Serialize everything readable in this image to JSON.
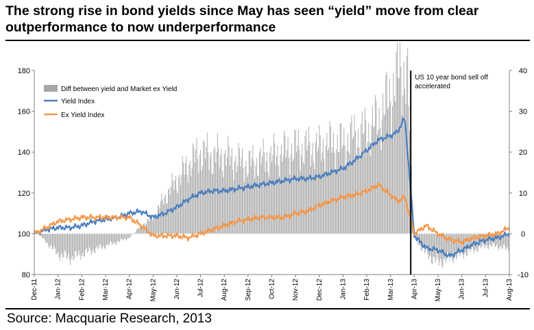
{
  "header": {
    "title": "The strong rise in bond yields since May has seen “yield” move from clear outperformance to now underperformance"
  },
  "footer": {
    "source": "Source: Macquarie Research, 2013"
  },
  "colors": {
    "diff_bars": "#a6a6a6",
    "yield_index": "#4a7ebf",
    "ex_yield_index": "#f79646",
    "event_line": "#000000"
  },
  "chart_data": {
    "type": "line",
    "title": "The strong rise in bond yields since May has seen “yield” move from clear outperformance to now underperformance",
    "x_tick_labels": [
      "Dec-11",
      "Jan-12",
      "Feb-12",
      "Mar-12",
      "Apr-12",
      "May-12",
      "Jun-12",
      "Jul-12",
      "Aug-12",
      "Sep-12",
      "Oct-12",
      "Nov-12",
      "Dec-12",
      "Jan-13",
      "Feb-13",
      "Mar-13",
      "Apr-13",
      "May-13",
      "Jun-13",
      "Jul-13",
      "Aug-13"
    ],
    "y_left": {
      "ylim": [
        80,
        180
      ],
      "ticks": [
        80,
        100,
        120,
        140,
        160,
        180
      ]
    },
    "y_right": {
      "ylim": [
        -10,
        40
      ],
      "ticks": [
        -10,
        0,
        10,
        20,
        30,
        40
      ]
    },
    "grid": false,
    "legend_position": "top-left",
    "annotation": {
      "text_lines": [
        "US 10 year bond sell off",
        "accelerated"
      ],
      "x_position_label": "late Apr-13"
    },
    "series": [
      {
        "name": "Diff between yield and Market ex Yield",
        "type": "bar",
        "axis": "right",
        "points": [
          [
            0,
            1
          ],
          [
            0.5,
            -2
          ],
          [
            1,
            -5
          ],
          [
            1.5,
            -6
          ],
          [
            2,
            -5
          ],
          [
            2.5,
            -4
          ],
          [
            3,
            -3
          ],
          [
            3.5,
            -2
          ],
          [
            4,
            -1
          ],
          [
            4.5,
            2
          ],
          [
            5,
            4
          ],
          [
            5.5,
            9
          ],
          [
            6,
            13
          ],
          [
            6.5,
            17
          ],
          [
            7,
            20
          ],
          [
            7.5,
            19
          ],
          [
            8,
            19
          ],
          [
            8.5,
            18
          ],
          [
            9,
            17
          ],
          [
            9.5,
            18
          ],
          [
            10,
            19
          ],
          [
            10.5,
            20
          ],
          [
            11,
            21
          ],
          [
            11.5,
            21
          ],
          [
            12,
            21
          ],
          [
            12.5,
            22
          ],
          [
            13,
            22
          ],
          [
            13.5,
            24
          ],
          [
            14,
            25
          ],
          [
            14.5,
            28
          ],
          [
            15,
            34
          ],
          [
            15.4,
            40
          ],
          [
            15.7,
            39
          ],
          [
            16,
            -1
          ],
          [
            16.5,
            -5
          ],
          [
            17,
            -7
          ],
          [
            17.5,
            -6
          ],
          [
            18,
            -5
          ],
          [
            18.5,
            -4
          ],
          [
            19,
            -3
          ],
          [
            19.5,
            -3
          ],
          [
            20,
            -4
          ]
        ]
      },
      {
        "name": "Yield Index",
        "type": "line",
        "axis": "left",
        "points": [
          [
            0,
            100
          ],
          [
            0.5,
            102
          ],
          [
            1,
            103
          ],
          [
            1.5,
            103
          ],
          [
            2,
            104
          ],
          [
            2.5,
            106
          ],
          [
            3,
            107
          ],
          [
            3.5,
            108
          ],
          [
            4,
            110
          ],
          [
            4.5,
            111
          ],
          [
            5,
            108
          ],
          [
            5.5,
            110
          ],
          [
            6,
            113
          ],
          [
            6.5,
            117
          ],
          [
            7,
            120
          ],
          [
            7.5,
            121
          ],
          [
            8,
            121
          ],
          [
            8.5,
            122
          ],
          [
            9,
            123
          ],
          [
            9.5,
            124
          ],
          [
            10,
            125
          ],
          [
            10.5,
            126
          ],
          [
            11,
            127
          ],
          [
            11.5,
            127
          ],
          [
            12,
            128
          ],
          [
            12.5,
            130
          ],
          [
            13,
            132
          ],
          [
            13.5,
            136
          ],
          [
            14,
            141
          ],
          [
            14.5,
            146
          ],
          [
            15,
            148
          ],
          [
            15.3,
            150
          ],
          [
            15.6,
            157
          ],
          [
            16,
            99
          ],
          [
            16.5,
            93
          ],
          [
            17,
            92
          ],
          [
            17.5,
            89
          ],
          [
            18,
            92
          ],
          [
            18.5,
            95
          ],
          [
            19,
            97
          ],
          [
            19.5,
            98
          ],
          [
            20,
            100
          ]
        ]
      },
      {
        "name": "Ex Yield Index",
        "type": "line",
        "axis": "left",
        "points": [
          [
            0,
            100
          ],
          [
            0.5,
            103
          ],
          [
            1,
            106
          ],
          [
            1.5,
            107
          ],
          [
            2,
            108
          ],
          [
            2.5,
            108
          ],
          [
            3,
            108
          ],
          [
            3.5,
            108
          ],
          [
            4,
            108
          ],
          [
            4.5,
            104
          ],
          [
            5,
            99
          ],
          [
            5.5,
            99
          ],
          [
            6,
            99
          ],
          [
            6.5,
            98
          ],
          [
            7,
            100
          ],
          [
            7.5,
            102
          ],
          [
            8,
            104
          ],
          [
            8.5,
            106
          ],
          [
            9,
            107
          ],
          [
            9.5,
            108
          ],
          [
            10,
            108
          ],
          [
            10.5,
            108
          ],
          [
            11,
            110
          ],
          [
            11.5,
            111
          ],
          [
            12,
            114
          ],
          [
            12.5,
            116
          ],
          [
            13,
            118
          ],
          [
            13.5,
            119
          ],
          [
            14,
            121
          ],
          [
            14.5,
            124
          ],
          [
            15,
            119
          ],
          [
            15.3,
            116
          ],
          [
            15.6,
            118
          ],
          [
            16,
            100
          ],
          [
            16.5,
            104
          ],
          [
            17,
            100
          ],
          [
            17.5,
            97
          ],
          [
            18,
            96
          ],
          [
            18.5,
            98
          ],
          [
            19,
            99
          ],
          [
            19.5,
            100
          ],
          [
            20,
            103
          ]
        ]
      }
    ]
  }
}
